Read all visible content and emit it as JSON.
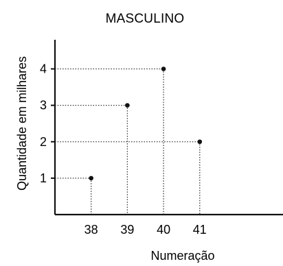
{
  "chart_data": {
    "type": "scatter",
    "title": "MASCULINO",
    "xlabel": "Numeração",
    "ylabel": "Quantidade em milhares",
    "x": [
      38,
      39,
      40,
      41
    ],
    "y": [
      1,
      3,
      4,
      2
    ],
    "x_ticks": [
      38,
      39,
      40,
      41
    ],
    "y_ticks": [
      1,
      2,
      3,
      4
    ],
    "xlim": [
      37,
      43.3
    ],
    "ylim": [
      0,
      4.8
    ],
    "grid": false,
    "colors": {
      "axis": "#111111",
      "point": "#111111",
      "guide": "#333333"
    }
  }
}
